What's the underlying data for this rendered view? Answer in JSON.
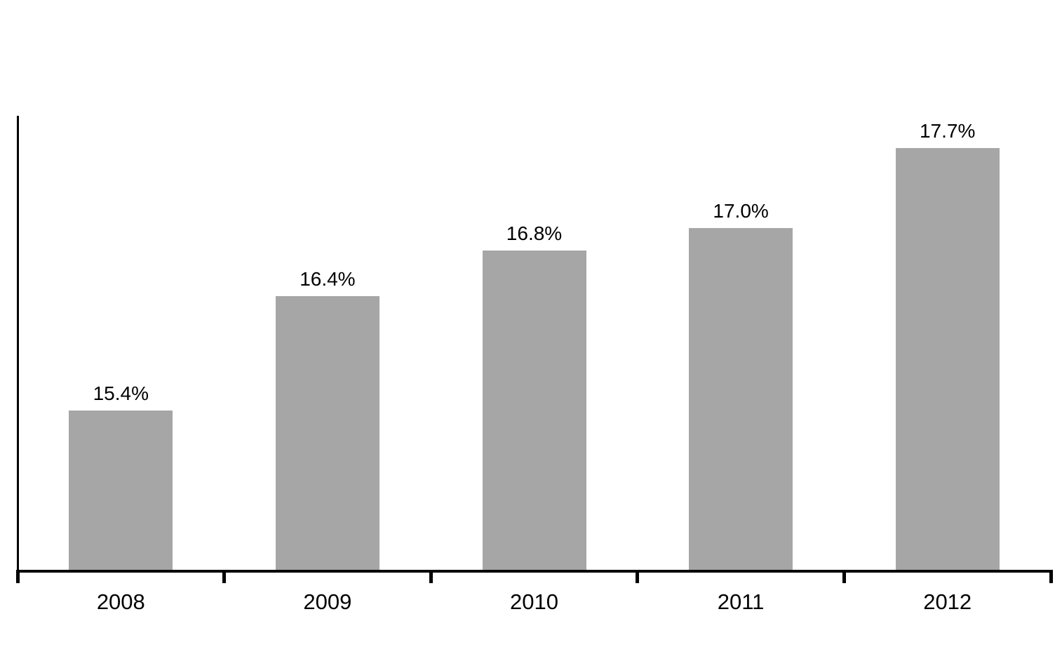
{
  "figure": {
    "background_color": "#ffffff",
    "axis_color": "#000000",
    "text_color": "#000000"
  },
  "chart_data": {
    "type": "bar",
    "title": "",
    "xlabel": "",
    "ylabel": "",
    "categories": [
      "2008",
      "2009",
      "2010",
      "2011",
      "2012"
    ],
    "values": [
      15.4,
      16.4,
      16.8,
      17.0,
      17.7
    ],
    "value_labels": [
      "15.4%",
      "16.4%",
      "16.8%",
      "17.0%",
      "17.7%"
    ],
    "ylim": [
      14,
      18
    ],
    "grid": false,
    "legend": false,
    "bar_color": "#a6a6a6",
    "data_labels_position": "above-bars",
    "y_tick_labels_visible": false,
    "x_ticks": "category-boundaries"
  }
}
